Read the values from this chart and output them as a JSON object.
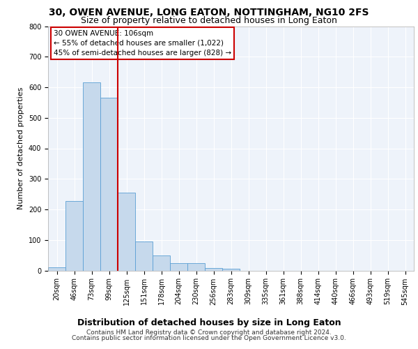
{
  "title1": "30, OWEN AVENUE, LONG EATON, NOTTINGHAM, NG10 2FS",
  "title2": "Size of property relative to detached houses in Long Eaton",
  "xlabel": "Distribution of detached houses by size in Long Eaton",
  "ylabel": "Number of detached properties",
  "footer1": "Contains HM Land Registry data © Crown copyright and database right 2024.",
  "footer2": "Contains public sector information licensed under the Open Government Licence v3.0.",
  "annotation_line1": "30 OWEN AVENUE: 106sqm",
  "annotation_line2": "← 55% of detached houses are smaller (1,022)",
  "annotation_line3": "45% of semi-detached houses are larger (828) →",
  "bar_labels": [
    "20sqm",
    "46sqm",
    "73sqm",
    "99sqm",
    "125sqm",
    "151sqm",
    "178sqm",
    "204sqm",
    "230sqm",
    "256sqm",
    "283sqm",
    "309sqm",
    "335sqm",
    "361sqm",
    "388sqm",
    "414sqm",
    "440sqm",
    "466sqm",
    "493sqm",
    "519sqm",
    "545sqm"
  ],
  "bar_values": [
    10,
    228,
    617,
    565,
    254,
    96,
    49,
    24,
    24,
    7,
    5,
    0,
    0,
    0,
    0,
    0,
    0,
    0,
    0,
    0,
    0
  ],
  "bar_color": "#c6d9ec",
  "bar_edge_color": "#5a9fd4",
  "vline_x": 3.5,
  "vline_color": "#cc0000",
  "background_color": "#eef3fa",
  "grid_color": "#ffffff",
  "ylim": [
    0,
    800
  ],
  "yticks": [
    0,
    100,
    200,
    300,
    400,
    500,
    600,
    700,
    800
  ],
  "annotation_box_color": "#cc0000",
  "title1_fontsize": 10,
  "title2_fontsize": 9,
  "axis_label_fontsize": 8,
  "tick_fontsize": 7,
  "footer_fontsize": 6.5
}
